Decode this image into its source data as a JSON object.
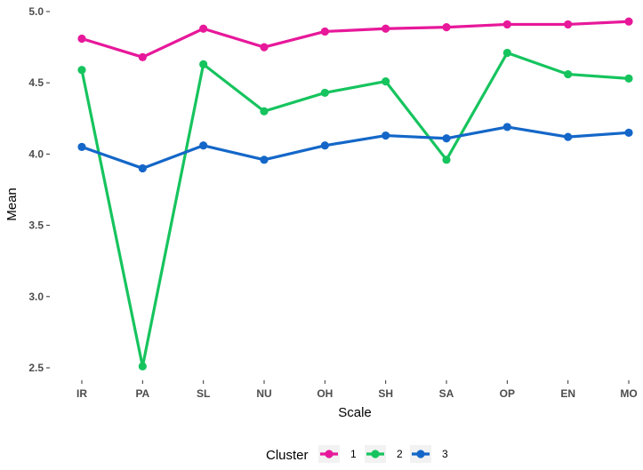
{
  "chart_data": {
    "type": "line",
    "xlabel": "Scale",
    "ylabel": "Mean",
    "categories": [
      "IR",
      "PA",
      "SL",
      "NU",
      "OH",
      "SH",
      "SA",
      "OP",
      "EN",
      "MO"
    ],
    "ylim": [
      2.4,
      5.0
    ],
    "yticks": [
      "2.5",
      "3.0",
      "3.5",
      "4.0",
      "4.5",
      "5.0"
    ],
    "grid": false,
    "legend": {
      "title": "Cluster",
      "position": "bottom"
    },
    "series": [
      {
        "name": "1",
        "color": "#e7189a",
        "values": [
          4.81,
          4.68,
          4.88,
          4.75,
          4.86,
          4.88,
          4.89,
          4.91,
          4.91,
          4.93
        ]
      },
      {
        "name": "2",
        "color": "#16c45e",
        "values": [
          4.59,
          2.51,
          4.63,
          4.3,
          4.43,
          4.51,
          3.96,
          4.71,
          4.56,
          4.53
        ]
      },
      {
        "name": "3",
        "color": "#1467c8",
        "values": [
          4.05,
          3.9,
          4.06,
          3.96,
          4.06,
          4.13,
          4.11,
          4.19,
          4.12,
          4.15
        ]
      }
    ]
  }
}
